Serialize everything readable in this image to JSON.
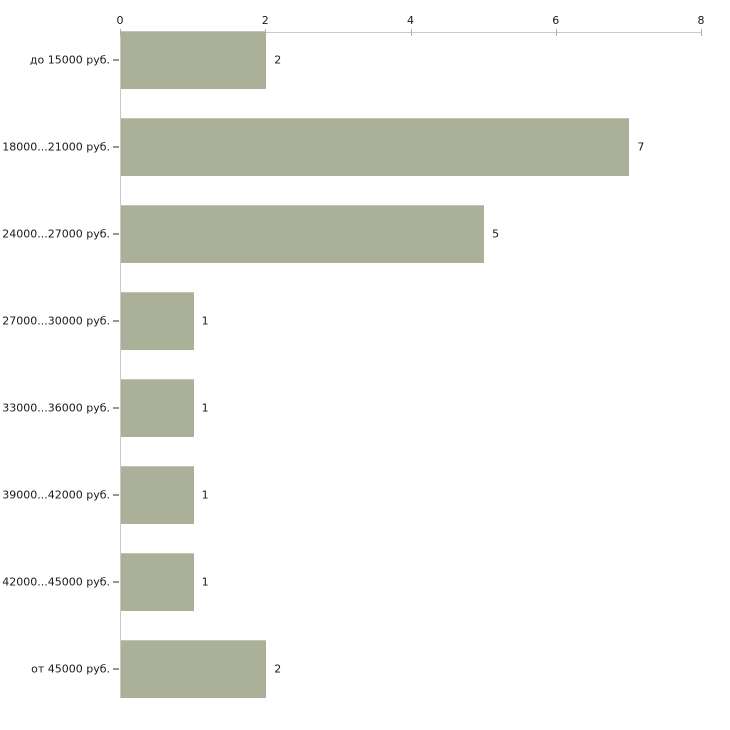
{
  "chart_data": {
    "type": "bar",
    "orientation": "horizontal",
    "title": "",
    "categories": [
      "до 15000 руб.",
      "18000...21000 руб.",
      "24000...27000 руб.",
      "27000...30000 руб.",
      "33000...36000 руб.",
      "39000...42000 руб.",
      "42000...45000 руб.",
      "от 45000 руб."
    ],
    "values": [
      2,
      7,
      5,
      1,
      1,
      1,
      1,
      2
    ],
    "value_labels": [
      "2",
      "7",
      "5",
      "1",
      "1",
      "1",
      "1",
      "2"
    ],
    "x_ticks": [
      "0",
      "2",
      "4",
      "6",
      "8"
    ],
    "xlim": [
      0,
      8
    ],
    "axis_position": "top",
    "grid": false,
    "legend": false,
    "value_labels_shown": true,
    "colors": {
      "bar_fill": "#abb198",
      "bar_border": "#c2c5b3",
      "axis_line": "#c9c9c9",
      "x_tick_mark": "#b3b093",
      "category_tick_mark": "#9a987f",
      "text": "#1a1a1a",
      "background": "#ffffff"
    }
  }
}
